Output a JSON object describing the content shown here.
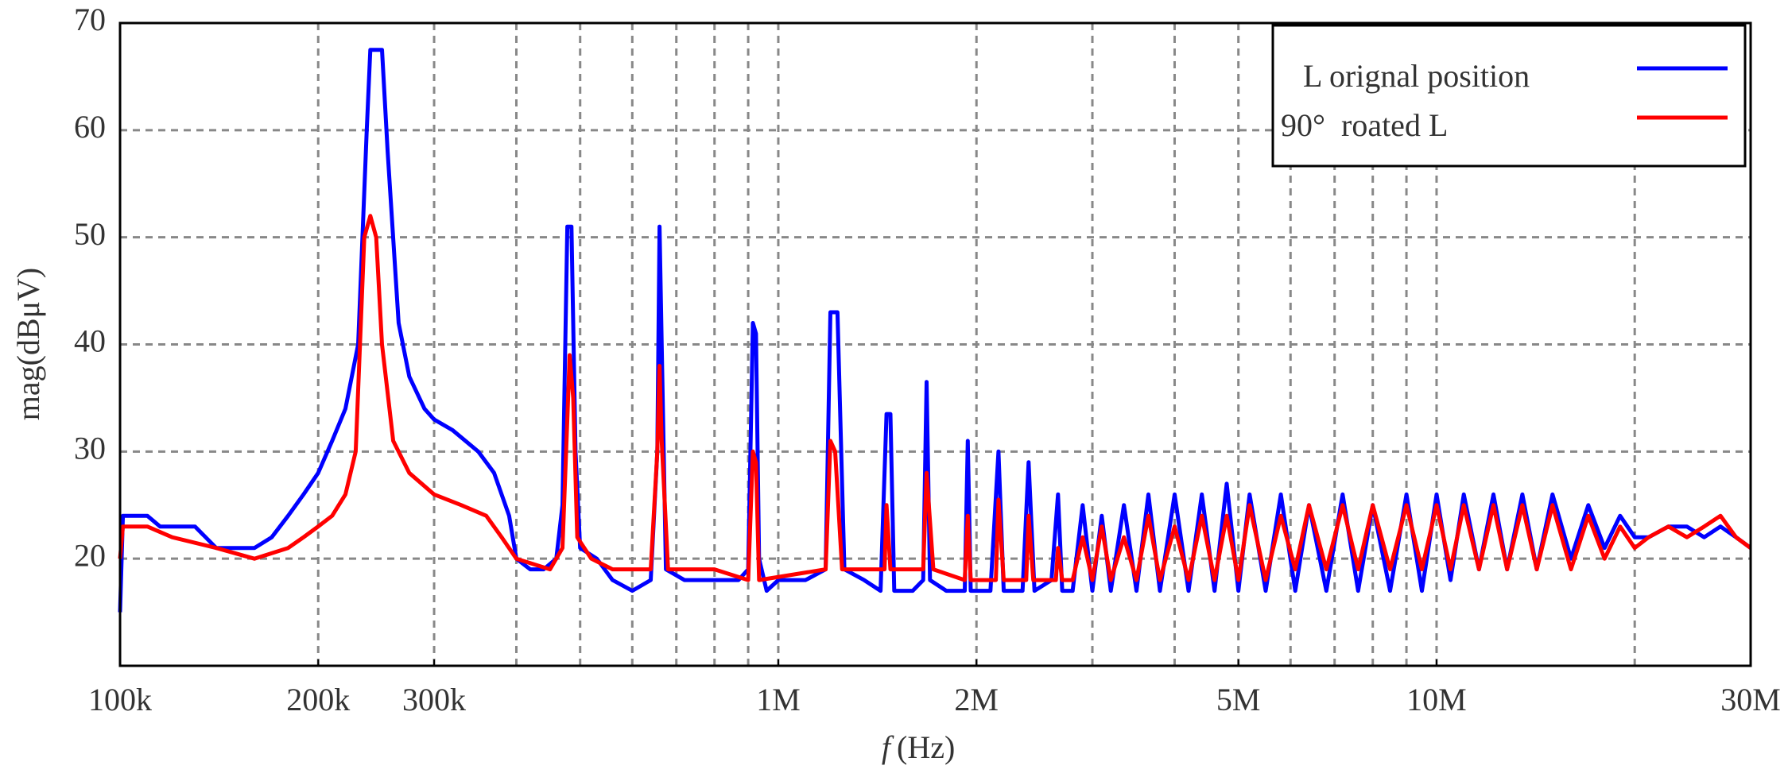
{
  "chart_data": {
    "type": "line",
    "x_label_symbol": "f",
    "x_label_unit": "(Hz)",
    "y_label": "mag(dBμV)",
    "xscale": "log",
    "xlim": [
      100000,
      30000000
    ],
    "ylim": [
      10,
      70
    ],
    "xticks": [
      {
        "value": 100000,
        "label": "100k"
      },
      {
        "value": 200000,
        "label": "200k"
      },
      {
        "value": 300000,
        "label": "300k"
      },
      {
        "value": 1000000,
        "label": "1M"
      },
      {
        "value": 2000000,
        "label": "2M"
      },
      {
        "value": 5000000,
        "label": "5M"
      },
      {
        "value": 10000000,
        "label": "10M"
      },
      {
        "value": 30000000,
        "label": "30M"
      }
    ],
    "xgrid": [
      200000,
      300000,
      400000,
      500000,
      600000,
      700000,
      800000,
      900000,
      1000000,
      2000000,
      3000000,
      4000000,
      5000000,
      6000000,
      7000000,
      8000000,
      9000000,
      10000000,
      20000000
    ],
    "yticks": [
      20,
      30,
      40,
      50,
      60,
      70
    ],
    "grid": true,
    "legend": "upper right",
    "series": [
      {
        "name": "L orignal position",
        "color": "#0000ff",
        "x": [
          100000,
          101000,
          110000,
          115000,
          130000,
          140000,
          160000,
          170000,
          180000,
          190000,
          200000,
          210000,
          220000,
          230000,
          237000,
          240000,
          250000,
          255000,
          265000,
          275000,
          290000,
          300000,
          320000,
          350000,
          370000,
          390000,
          400000,
          420000,
          440000,
          460000,
          470000,
          478000,
          485000,
          492000,
          500000,
          530000,
          560000,
          600000,
          640000,
          655000,
          660000,
          665000,
          675000,
          720000,
          800000,
          870000,
          900000,
          915000,
          925000,
          935000,
          960000,
          1000000,
          1100000,
          1180000,
          1200000,
          1230000,
          1260000,
          1350000,
          1430000,
          1460000,
          1480000,
          1500000,
          1600000,
          1660000,
          1680000,
          1700000,
          1800000,
          1920000,
          1940000,
          1960000,
          2100000,
          2160000,
          2200000,
          2350000,
          2400000,
          2450000,
          2600000,
          2660000,
          2700000,
          2800000,
          2900000,
          3000000,
          3100000,
          3200000,
          3350000,
          3500000,
          3650000,
          3800000,
          4000000,
          4200000,
          4400000,
          4600000,
          4800000,
          5000000,
          5200000,
          5500000,
          5800000,
          6100000,
          6400000,
          6800000,
          7200000,
          7600000,
          8000000,
          8500000,
          9000000,
          9500000,
          10000000,
          10500000,
          11000000,
          11600000,
          12200000,
          12800000,
          13500000,
          14200000,
          15000000,
          16000000,
          17000000,
          18000000,
          19000000,
          20000000,
          21000000,
          22500000,
          24000000,
          25500000,
          27000000,
          28500000,
          30000000
        ],
        "values": [
          15,
          24,
          24,
          23,
          23,
          21,
          21,
          22,
          24,
          26,
          28,
          31,
          34,
          40,
          60,
          67.5,
          67.5,
          58,
          42,
          37,
          34,
          33,
          32,
          30,
          28,
          24,
          20,
          19,
          19,
          20,
          25,
          51,
          51,
          30,
          21,
          20,
          18,
          17,
          18,
          30,
          51,
          40,
          19,
          18,
          18,
          18,
          19,
          42,
          41,
          20,
          17,
          18,
          18,
          19,
          43,
          43,
          19,
          18,
          17,
          33.5,
          33.5,
          17,
          17,
          18,
          36.5,
          18,
          17,
          17,
          31,
          17,
          17,
          30,
          17,
          17,
          29,
          17,
          18,
          26,
          17,
          17,
          25,
          17,
          24,
          17,
          25,
          17,
          26,
          17,
          26,
          17,
          26,
          17,
          27,
          17,
          26,
          17,
          26,
          17,
          25,
          17,
          26,
          17,
          25,
          17,
          26,
          17,
          26,
          18,
          26,
          19,
          26,
          19,
          26,
          19,
          26,
          20,
          25,
          21,
          24,
          22,
          22,
          23,
          23,
          22,
          23,
          22,
          21
        ]
      },
      {
        "name": "90°  roated L",
        "color": "#ff0000",
        "x": [
          100000,
          101000,
          110000,
          120000,
          140000,
          160000,
          180000,
          190000,
          200000,
          210000,
          220000,
          228000,
          235000,
          240000,
          245000,
          250000,
          260000,
          275000,
          300000,
          330000,
          360000,
          380000,
          400000,
          450000,
          470000,
          478000,
          482000,
          488000,
          495000,
          520000,
          560000,
          640000,
          655000,
          660000,
          665000,
          680000,
          800000,
          900000,
          915000,
          925000,
          935000,
          1180000,
          1200000,
          1220000,
          1250000,
          1450000,
          1460000,
          1480000,
          1660000,
          1680000,
          1720000,
          1920000,
          1940000,
          1960000,
          2140000,
          2160000,
          2200000,
          2380000,
          2400000,
          2440000,
          2640000,
          2660000,
          2700000,
          2800000,
          2900000,
          3000000,
          3100000,
          3200000,
          3350000,
          3500000,
          3650000,
          3800000,
          4000000,
          4200000,
          4400000,
          4600000,
          4800000,
          5000000,
          5200000,
          5500000,
          5800000,
          6100000,
          6400000,
          6800000,
          7200000,
          7600000,
          8000000,
          8500000,
          9000000,
          9500000,
          10000000,
          10500000,
          11000000,
          11600000,
          12200000,
          12800000,
          13500000,
          14200000,
          15000000,
          16000000,
          17000000,
          18000000,
          19000000,
          20000000,
          21000000,
          22500000,
          24000000,
          25500000,
          27000000,
          28500000,
          30000000
        ],
        "values": [
          20,
          23,
          23,
          22,
          21,
          20,
          21,
          22,
          23,
          24,
          26,
          30,
          50,
          52,
          50,
          40,
          31,
          28,
          26,
          25,
          24,
          22,
          20,
          19,
          21,
          33,
          39,
          35,
          22,
          20,
          19,
          19,
          30,
          38,
          31,
          19,
          19,
          18,
          30,
          29,
          18,
          19,
          31,
          30,
          19,
          19,
          25,
          19,
          19,
          28,
          19,
          18,
          24,
          18,
          18,
          25.5,
          18,
          18,
          24,
          18,
          18,
          21,
          18,
          18,
          22,
          18,
          23,
          18,
          22,
          18,
          24,
          18,
          23,
          18,
          24,
          18,
          24,
          18,
          25,
          18,
          24,
          19,
          25,
          19,
          25,
          19,
          25,
          19,
          25,
          19,
          25,
          19,
          25,
          19,
          25,
          19,
          25,
          19,
          25,
          19,
          24,
          20,
          23,
          21,
          22,
          23,
          22,
          23,
          24,
          22,
          21
        ]
      }
    ]
  }
}
